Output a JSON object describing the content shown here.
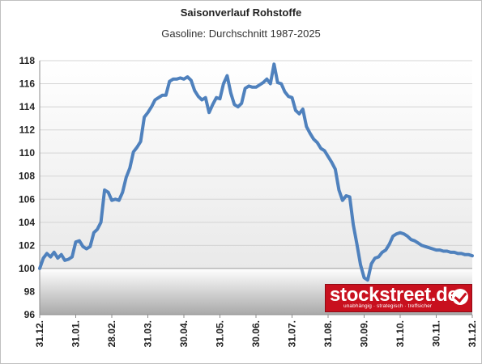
{
  "chart_data": {
    "type": "line",
    "title": "Saisonverlauf Rohstoffe",
    "subtitle": "Gasoline: Durchschnitt 1987-2025",
    "xlabel": "",
    "ylabel": "",
    "ylim": [
      96,
      118
    ],
    "yticks": [
      96,
      98,
      100,
      102,
      104,
      106,
      108,
      110,
      112,
      114,
      116,
      118
    ],
    "xtick_labels": [
      "31.12.",
      "31.01.",
      "28.02.",
      "31.03.",
      "30.04.",
      "31.05.",
      "30.06.",
      "31.07.",
      "31.08.",
      "30.09.",
      "31.10.",
      "30.11.",
      "31.12."
    ],
    "below_100_shaded": true,
    "grid": "horizontal",
    "series": [
      {
        "color": "#4f81bd",
        "x": [
          0.0,
          0.1,
          0.2,
          0.3,
          0.4,
          0.5,
          0.6,
          0.7,
          0.8,
          0.9,
          1.0,
          1.1,
          1.2,
          1.3,
          1.4,
          1.5,
          1.6,
          1.7,
          1.8,
          1.9,
          2.0,
          2.1,
          2.2,
          2.3,
          2.4,
          2.5,
          2.6,
          2.7,
          2.8,
          2.9,
          3.0,
          3.1,
          3.2,
          3.3,
          3.4,
          3.5,
          3.6,
          3.7,
          3.8,
          3.9,
          4.0,
          4.1,
          4.2,
          4.3,
          4.4,
          4.5,
          4.6,
          4.7,
          4.8,
          4.9,
          5.0,
          5.1,
          5.2,
          5.3,
          5.4,
          5.5,
          5.6,
          5.7,
          5.8,
          5.9,
          6.0,
          6.1,
          6.2,
          6.3,
          6.4,
          6.5,
          6.6,
          6.7,
          6.8,
          6.9,
          7.0,
          7.1,
          7.2,
          7.3,
          7.4,
          7.5,
          7.6,
          7.7,
          7.8,
          7.9,
          8.0,
          8.1,
          8.2,
          8.3,
          8.4,
          8.5,
          8.6,
          8.7,
          8.8,
          8.9,
          9.0,
          9.1,
          9.2,
          9.3,
          9.4,
          9.5,
          9.6,
          9.7,
          9.8,
          9.9,
          10.0,
          10.1,
          10.2,
          10.3,
          10.4,
          10.5,
          10.6,
          10.7,
          10.8,
          10.9,
          11.0,
          11.1,
          11.2,
          11.3,
          11.4,
          11.5,
          11.6,
          11.7,
          11.8,
          11.9,
          12.0
        ],
        "values": [
          100.0,
          100.9,
          101.3,
          101.0,
          101.4,
          100.9,
          101.2,
          100.7,
          100.8,
          101.0,
          102.3,
          102.4,
          101.9,
          101.7,
          101.9,
          103.1,
          103.4,
          104.0,
          106.8,
          106.6,
          105.9,
          106.0,
          105.9,
          106.6,
          107.9,
          108.7,
          110.1,
          110.5,
          111.0,
          113.1,
          113.5,
          114.0,
          114.6,
          114.8,
          115.0,
          115.0,
          116.2,
          116.4,
          116.4,
          116.5,
          116.4,
          116.6,
          116.3,
          115.4,
          114.9,
          114.6,
          114.8,
          113.5,
          114.2,
          114.8,
          114.7,
          116.0,
          116.7,
          115.2,
          114.2,
          114.0,
          114.3,
          115.6,
          115.8,
          115.7,
          115.7,
          115.9,
          116.1,
          116.4,
          116.0,
          117.7,
          116.1,
          116.0,
          115.3,
          114.9,
          114.8,
          113.7,
          113.4,
          113.8,
          112.3,
          111.7,
          111.2,
          110.9,
          110.4,
          110.2,
          109.7,
          109.2,
          108.6,
          106.8,
          105.9,
          106.3,
          106.2,
          103.8,
          102.1,
          100.3,
          99.2,
          99.0,
          100.4,
          100.9,
          101.0,
          101.4,
          101.6,
          102.1,
          102.8,
          103.0,
          103.1,
          103.0,
          102.8,
          102.5,
          102.4,
          102.2,
          102.0,
          101.9,
          101.8,
          101.7,
          101.6,
          101.6,
          101.5,
          101.5,
          101.4,
          101.4,
          101.3,
          101.3,
          101.2,
          101.2,
          101.1
        ]
      }
    ]
  },
  "logo": {
    "text": "stockstreet.de",
    "tagline": "unabhängig · strategisch · treffsicher",
    "check_icon": "check-circle-icon"
  }
}
